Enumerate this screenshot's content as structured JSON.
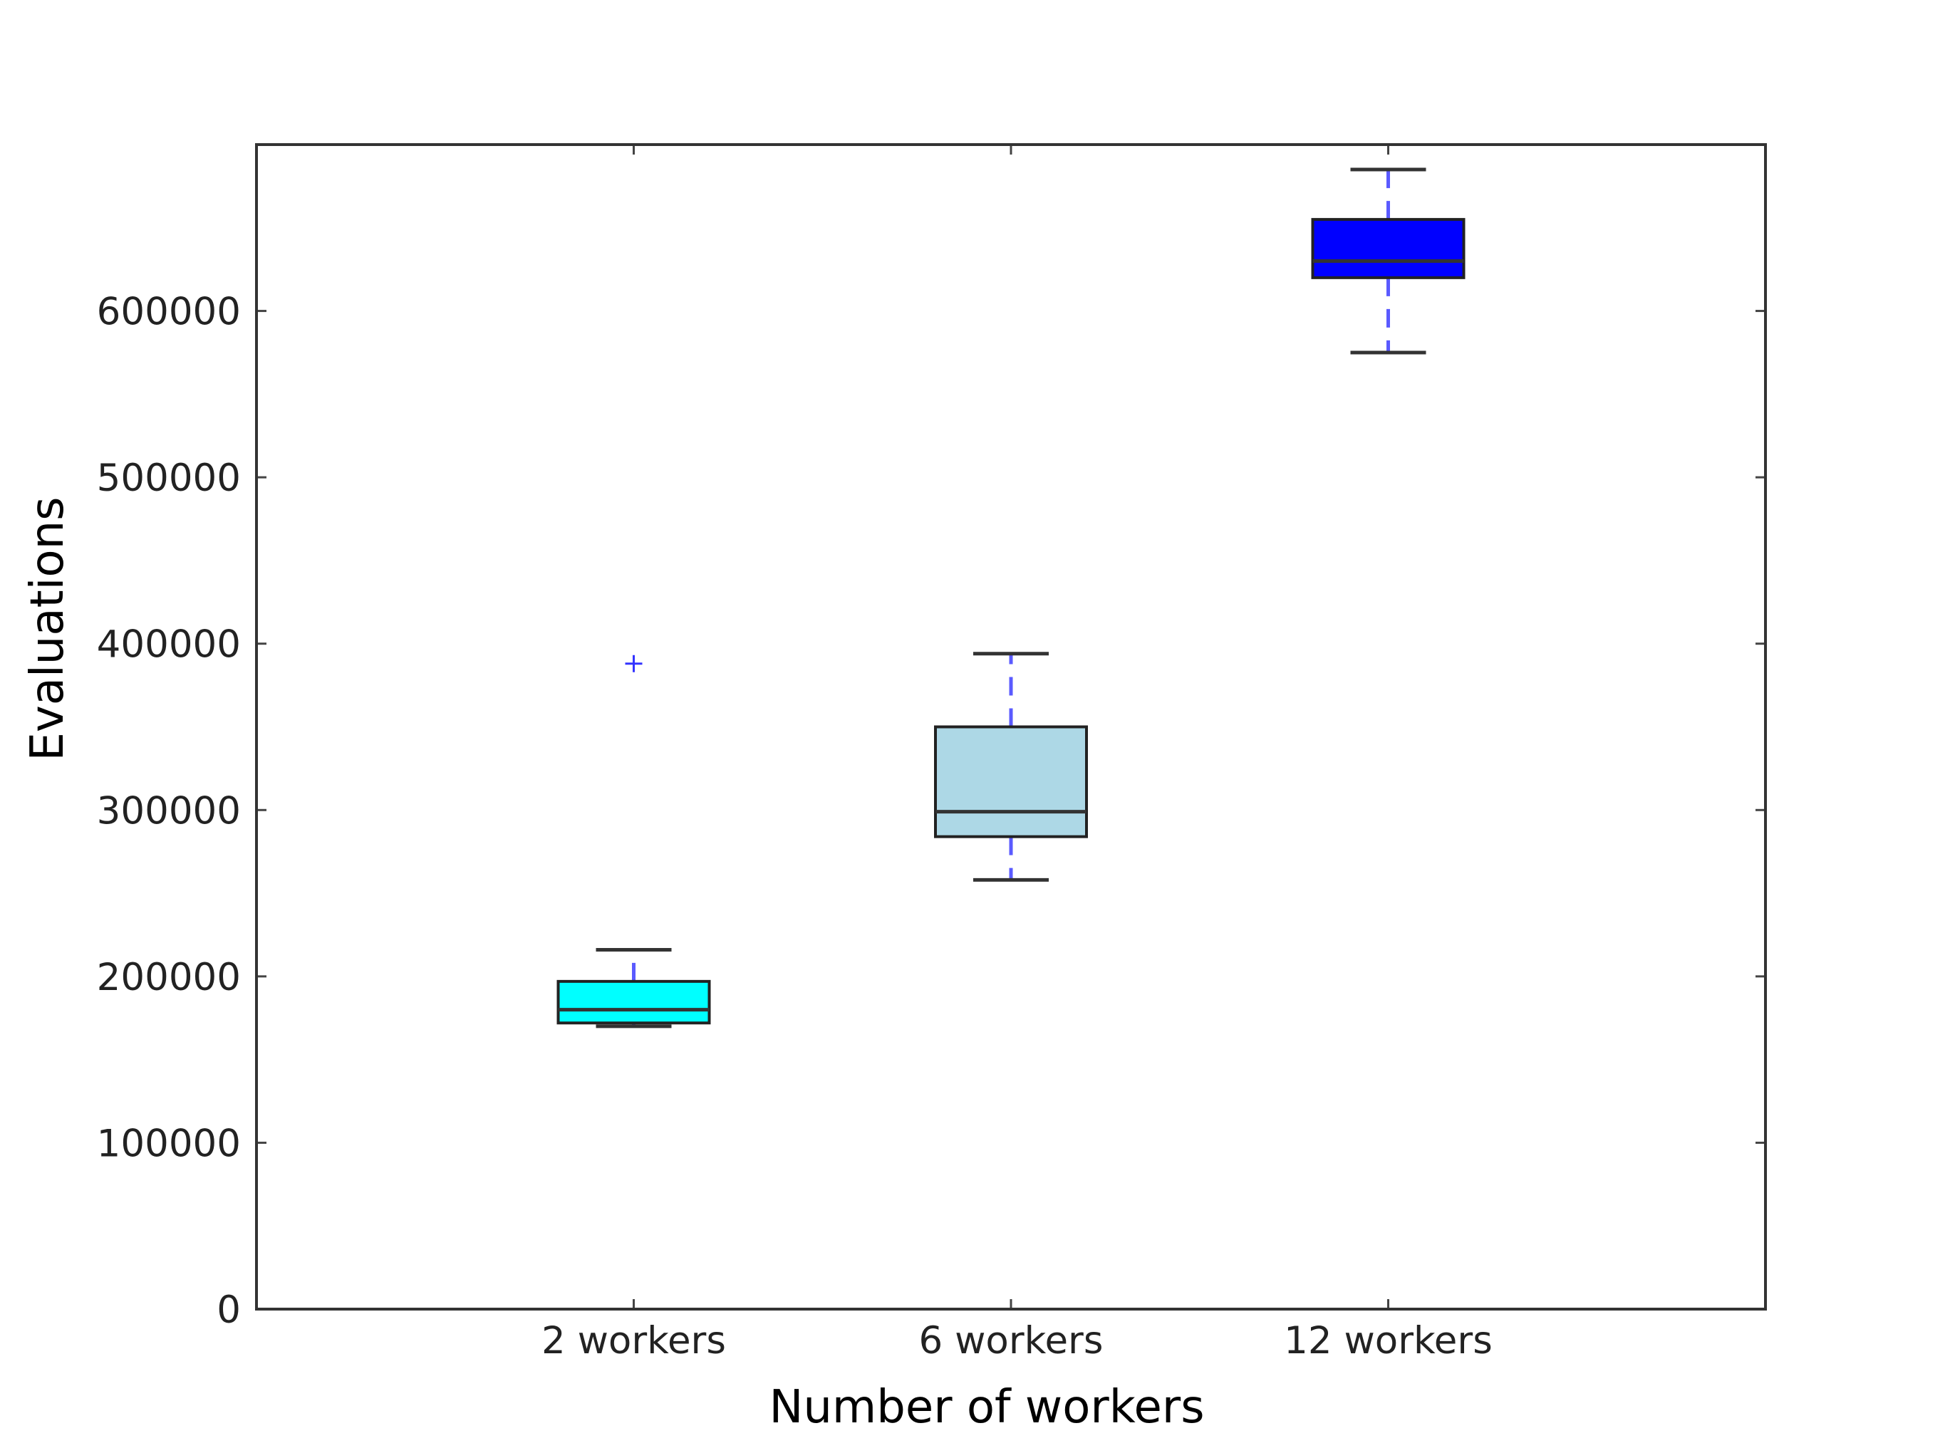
{
  "chart_data": {
    "type": "box",
    "title": "",
    "xlabel": "Number of workers",
    "ylabel": "Evaluations",
    "ylim": [
      0,
      700000
    ],
    "yticks": [
      0,
      100000,
      200000,
      300000,
      400000,
      500000,
      600000
    ],
    "ytick_labels": [
      "0",
      "100000",
      "200000",
      "300000",
      "400000",
      "500000",
      "600000"
    ],
    "categories": [
      "2 workers",
      "6 workers",
      "12 workers"
    ],
    "grid": false,
    "legend": "none",
    "boxes": [
      {
        "category": "2 workers",
        "whisker_low": 170000,
        "q1": 172000,
        "median": 180000,
        "q3": 197000,
        "whisker_high": 216000,
        "outliers": [
          388000
        ],
        "color": "#00ffff"
      },
      {
        "category": "6 workers",
        "whisker_low": 258000,
        "q1": 284000,
        "median": 299000,
        "q3": 350000,
        "whisker_high": 394000,
        "outliers": [],
        "color": "#add8e6"
      },
      {
        "category": "12 workers",
        "whisker_low": 575000,
        "q1": 620000,
        "median": 630000,
        "q3": 655000,
        "whisker_high": 685000,
        "outliers": [],
        "color": "#0000ff"
      }
    ],
    "whisker_color": "#5a5aff",
    "outlier_color": "#3333ff"
  }
}
